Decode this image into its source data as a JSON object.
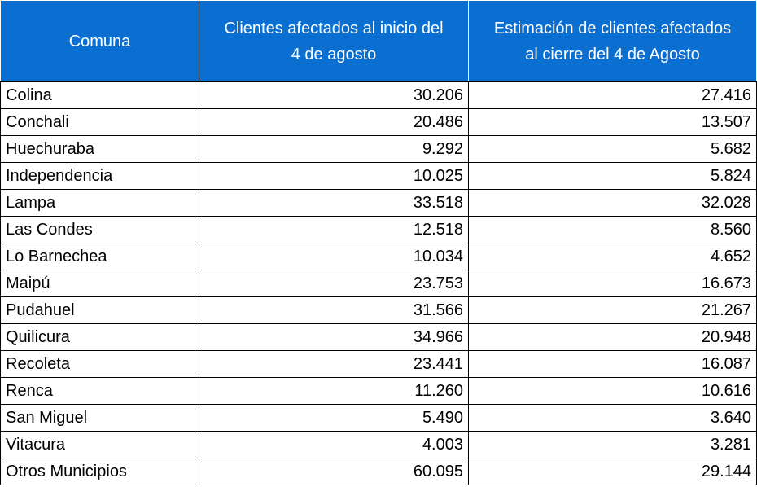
{
  "headers": {
    "comuna": "Comuna",
    "inicio_line1": "Clientes afectados al inicio del",
    "inicio_line2": "4 de agosto",
    "cierre_line1": "Estimación de clientes afectados",
    "cierre_line2": "al cierre del 4 de Agosto"
  },
  "rows": [
    {
      "comuna": "Colina",
      "inicio": "30.206",
      "cierre": "27.416"
    },
    {
      "comuna": "Conchali",
      "inicio": "20.486",
      "cierre": "13.507"
    },
    {
      "comuna": "Huechuraba",
      "inicio": "9.292",
      "cierre": "5.682"
    },
    {
      "comuna": "Independencia",
      "inicio": "10.025",
      "cierre": "5.824"
    },
    {
      "comuna": "Lampa",
      "inicio": "33.518",
      "cierre": "32.028"
    },
    {
      "comuna": "Las Condes",
      "inicio": "12.518",
      "cierre": "8.560"
    },
    {
      "comuna": "Lo Barnechea",
      "inicio": "10.034",
      "cierre": "4.652"
    },
    {
      "comuna": "Maipú",
      "inicio": "23.753",
      "cierre": "16.673"
    },
    {
      "comuna": "Pudahuel",
      "inicio": "31.566",
      "cierre": "21.267"
    },
    {
      "comuna": "Quilicura",
      "inicio": "34.966",
      "cierre": "20.948"
    },
    {
      "comuna": "Recoleta",
      "inicio": "23.441",
      "cierre": "16.087"
    },
    {
      "comuna": "Renca",
      "inicio": "11.260",
      "cierre": "10.616"
    },
    {
      "comuna": "San Miguel",
      "inicio": "5.490",
      "cierre": "3.640"
    },
    {
      "comuna": "Vitacura",
      "inicio": "4.003",
      "cierre": "3.281"
    },
    {
      "comuna": "Otros Municipios",
      "inicio": "60.095",
      "cierre": "29.144"
    }
  ],
  "colors": {
    "header_bg": "#0a6fd1",
    "header_text": "#ffffff",
    "border": "#000000"
  }
}
